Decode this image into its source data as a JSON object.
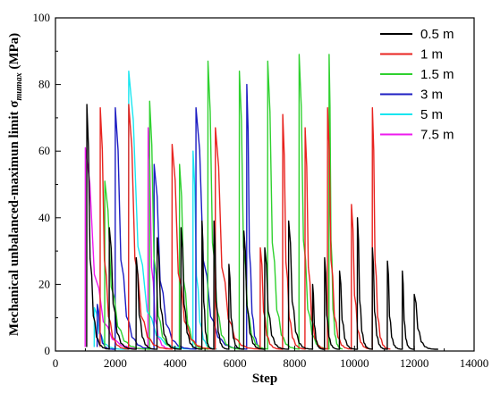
{
  "chart_data": {
    "type": "line",
    "xlabel": "Step",
    "ylabel_main": "Mechanical unbalanced-maximun limit σ",
    "ylabel_sub": "mumax",
    "ylabel_unit": " (MPa)",
    "xlim": [
      0,
      14000
    ],
    "ylim": [
      0,
      100
    ],
    "xticks": [
      0,
      2000,
      4000,
      6000,
      8000,
      10000,
      12000,
      14000
    ],
    "yticks": [
      0,
      20,
      40,
      60,
      80,
      100
    ],
    "minor_x_step": 1000,
    "minor_y_step": 10,
    "legend_position": "top-right",
    "series": [
      {
        "name": "0.5 m",
        "color": "#000000",
        "peaks": [
          [
            1050,
            74
          ],
          [
            1800,
            37
          ],
          [
            2700,
            28
          ],
          [
            3400,
            34
          ],
          [
            4200,
            37
          ],
          [
            4900,
            39
          ],
          [
            5300,
            39
          ],
          [
            5800,
            26
          ],
          [
            6300,
            36
          ],
          [
            7000,
            31
          ],
          [
            7800,
            39
          ],
          [
            8600,
            20
          ],
          [
            9000,
            28
          ],
          [
            9500,
            24
          ],
          [
            10100,
            40
          ],
          [
            10600,
            31
          ],
          [
            11100,
            27
          ],
          [
            11600,
            24
          ],
          [
            12000,
            17
          ]
        ],
        "end_x": 12800
      },
      {
        "name": "1 m",
        "color": "#e8231f",
        "peaks": [
          [
            1500,
            73
          ],
          [
            2450,
            74
          ],
          [
            3900,
            62
          ],
          [
            5350,
            67
          ],
          [
            6850,
            31
          ],
          [
            7600,
            71
          ],
          [
            8350,
            67
          ],
          [
            9100,
            73
          ],
          [
            9900,
            44
          ],
          [
            10600,
            73
          ]
        ],
        "end_x": 11200
      },
      {
        "name": "1.5 m",
        "color": "#2fd12f",
        "peaks": [
          [
            1650,
            51
          ],
          [
            3150,
            75
          ],
          [
            4150,
            56
          ],
          [
            5100,
            87
          ],
          [
            6150,
            84
          ],
          [
            7100,
            87
          ],
          [
            8150,
            89
          ],
          [
            9150,
            89
          ]
        ],
        "end_x": 9600
      },
      {
        "name": "3 m",
        "color": "#1c1cc2",
        "peaks": [
          [
            1400,
            14
          ],
          [
            2000,
            73
          ],
          [
            3300,
            56
          ],
          [
            4700,
            73
          ],
          [
            6400,
            80
          ]
        ],
        "end_x": 7000
      },
      {
        "name": "5 m",
        "color": "#19e6f0",
        "peaks": [
          [
            1300,
            13
          ],
          [
            2450,
            84
          ],
          [
            4600,
            60
          ]
        ],
        "end_x": 5400
      },
      {
        "name": "7.5 m",
        "color": "#ee19ee",
        "peaks": [
          [
            1000,
            61
          ],
          [
            3100,
            67
          ]
        ],
        "end_x": 3900
      }
    ]
  }
}
